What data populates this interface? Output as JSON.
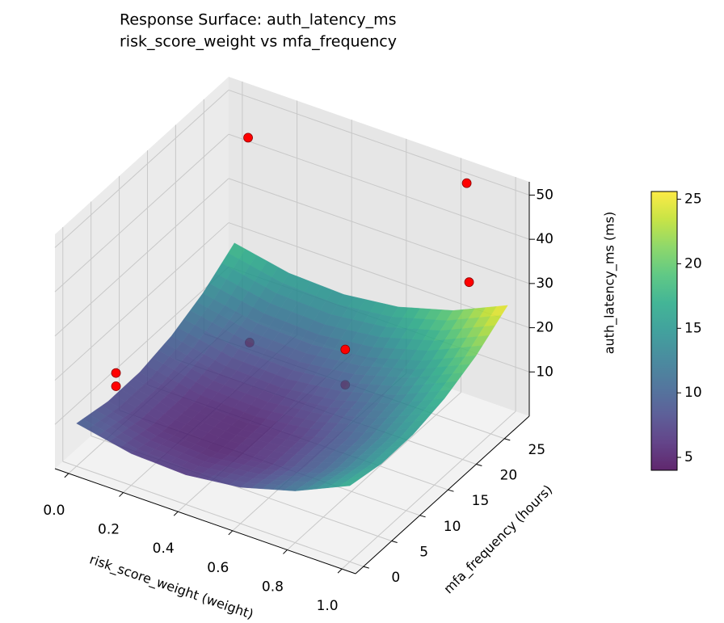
{
  "chart_data": {
    "type": "surface3d",
    "title": "Response Surface: auth_latency_ms",
    "subtitle": "risk_score_weight vs mfa_frequency",
    "x_label": "risk_score_weight (weight)",
    "y_label": "mfa_frequency (hours)",
    "z_label": "auth_latency_ms (ms)",
    "surface": {
      "x": [
        0,
        0.2,
        0.4,
        0.6,
        0.8,
        1.0
      ],
      "y": [
        0,
        5.6,
        11.2,
        16.8,
        22.4,
        28
      ],
      "z": [
        [
          9.7,
          7.2,
          6.7,
          8.2,
          11.7,
          17.2
        ],
        [
          8.2,
          5.7,
          5.2,
          6.7,
          10.2,
          15.7
        ],
        [
          8.3,
          5.8,
          5.3,
          6.8,
          10.3,
          15.8
        ],
        [
          10.0,
          7.5,
          7.0,
          8.5,
          12.0,
          17.5
        ],
        [
          13.2,
          10.7,
          10.2,
          11.7,
          15.2,
          20.7
        ],
        [
          18.1,
          15.6,
          15.1,
          16.6,
          20.1,
          25.6
        ]
      ]
    },
    "colormap": "viridis",
    "clim": [
      4,
      25.6
    ],
    "cticks": [
      5,
      10,
      15,
      20,
      25
    ],
    "points": {
      "color": "#ff0000",
      "x": [
        0.05,
        0.85,
        0.9,
        0.2,
        0.55,
        0.55,
        0.0,
        0.0
      ],
      "y": [
        28,
        28,
        26,
        21,
        21,
        21,
        7,
        7
      ],
      "z": [
        43,
        50,
        31,
        8,
        14,
        6,
        13,
        10
      ]
    },
    "xlim": [
      -0.05,
      1.05
    ],
    "ylim": [
      -1.4,
      29.4
    ],
    "zlim": [
      0,
      53
    ],
    "xticks": [
      {
        "value": 0,
        "label": "0.0"
      },
      0.2,
      0.4,
      0.6,
      0.8,
      {
        "value": 1,
        "label": "1.0"
      }
    ],
    "yticks": [
      0,
      5,
      10,
      15,
      20,
      25
    ],
    "zticks": [
      10,
      20,
      30,
      40,
      50
    ],
    "grid": true
  }
}
